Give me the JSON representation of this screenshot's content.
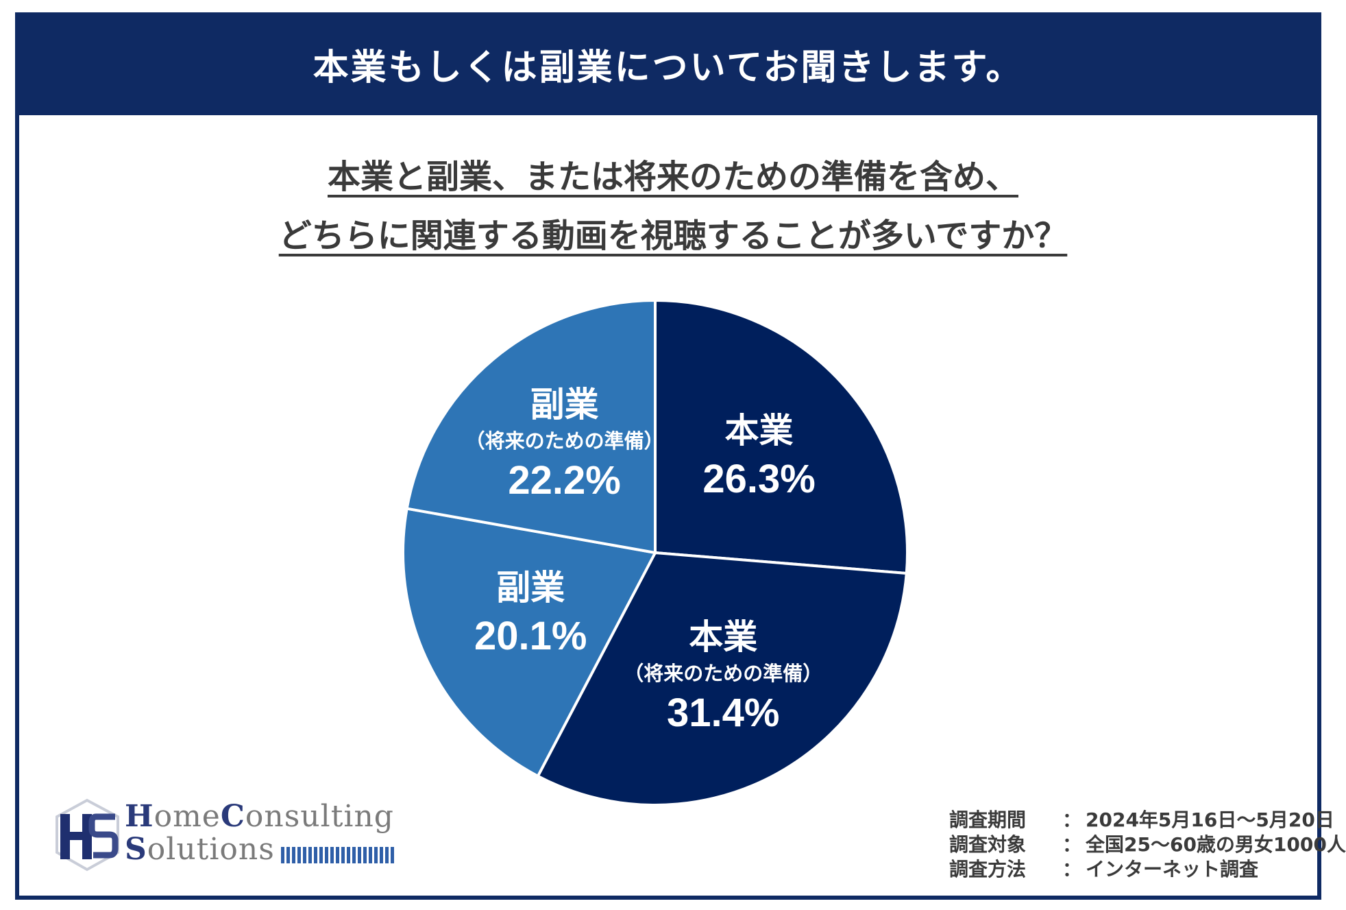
{
  "header": {
    "title": "本業もしくは副業についてお聞きします。"
  },
  "question": {
    "line1": "本業と副業、または将来のための準備を含め、",
    "line2": "どちらに関連する動画を視聴することが多いですか？"
  },
  "chart_data": {
    "type": "pie",
    "slices": [
      {
        "category": "本業",
        "sub": "",
        "value": 26.3,
        "label": "26.3%",
        "color": "#001f5c"
      },
      {
        "category": "本業",
        "sub": "（将来のための準備）",
        "value": 31.4,
        "label": "31.4%",
        "color": "#001f5c"
      },
      {
        "category": "副業",
        "sub": "",
        "value": 20.1,
        "label": "20.1%",
        "color": "#2e75b6"
      },
      {
        "category": "副業",
        "sub": "（将来のための準備）",
        "value": 22.2,
        "label": "22.2%",
        "color": "#2e75b6"
      }
    ]
  },
  "logo": {
    "line1_cap": "H",
    "line1_rest": "ome",
    "line1_cap2": "C",
    "line1_rest2": "onsulting",
    "line2_cap": "S",
    "line2_rest": "olutions"
  },
  "survey": {
    "rows": [
      {
        "key": "調査期間",
        "sep": "：",
        "value": "2024年5月16日～5月20日"
      },
      {
        "key": "調査対象",
        "sep": "：",
        "value": "全国25～60歳の男女1000人"
      },
      {
        "key": "調査方法",
        "sep": "：",
        "value": "インターネット調査"
      }
    ]
  },
  "colors": {
    "navy": "#0f2a63",
    "pie_dark": "#001f5c",
    "pie_light": "#2e75b6"
  }
}
